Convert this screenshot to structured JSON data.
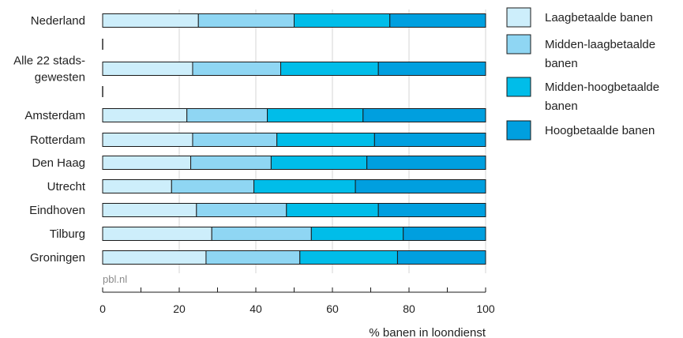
{
  "chart_data": {
    "type": "bar",
    "orientation": "horizontal",
    "stacked": true,
    "categories": [
      "Nederland",
      "Alle 22 stads-gewesten",
      "Amsterdam",
      "Rotterdam",
      "Den Haag",
      "Utrecht",
      "Eindhoven",
      "Tilburg",
      "Groningen"
    ],
    "category_lines": [
      [
        "Nederland"
      ],
      [
        "Alle 22 stads-",
        "gewesten"
      ],
      [
        "Amsterdam"
      ],
      [
        "Rotterdam"
      ],
      [
        "Den Haag"
      ],
      [
        "Utrecht"
      ],
      [
        "Eindhoven"
      ],
      [
        "Tilburg"
      ],
      [
        "Groningen"
      ]
    ],
    "series": [
      {
        "name": "Laagbetaalde banen",
        "color": "#cdeefb",
        "values": [
          25,
          23.5,
          22,
          23.5,
          23,
          18,
          24.5,
          28.5,
          27
        ]
      },
      {
        "name": "Midden-laagbetaalde banen",
        "color": "#8fd6f3",
        "values": [
          25,
          23,
          21,
          22,
          21,
          21.5,
          23.5,
          26,
          24.5
        ]
      },
      {
        "name": "Midden-hoogbetaalde banen",
        "color": "#00bde9",
        "values": [
          25,
          25.5,
          25,
          25.5,
          25,
          26.5,
          24,
          24,
          25.5
        ]
      },
      {
        "name": "Hoogbetaalde banen",
        "color": "#009fdf",
        "values": [
          25,
          28,
          32,
          29,
          31,
          34,
          28,
          21.5,
          23
        ]
      }
    ],
    "legend_lines": [
      [
        "Laagbetaalde banen"
      ],
      [
        "Midden-laagbetaalde",
        "banen"
      ],
      [
        "Midden-hoogbetaalde",
        "banen"
      ],
      [
        "Hoogbetaalde banen"
      ]
    ],
    "xlabel": "% banen in loondienst",
    "xlim": [
      0,
      100
    ],
    "xticks": [
      "0",
      "20",
      "40",
      "60",
      "80",
      "100"
    ],
    "source": "pbl.nl",
    "grid": true,
    "legend_position": "right"
  }
}
